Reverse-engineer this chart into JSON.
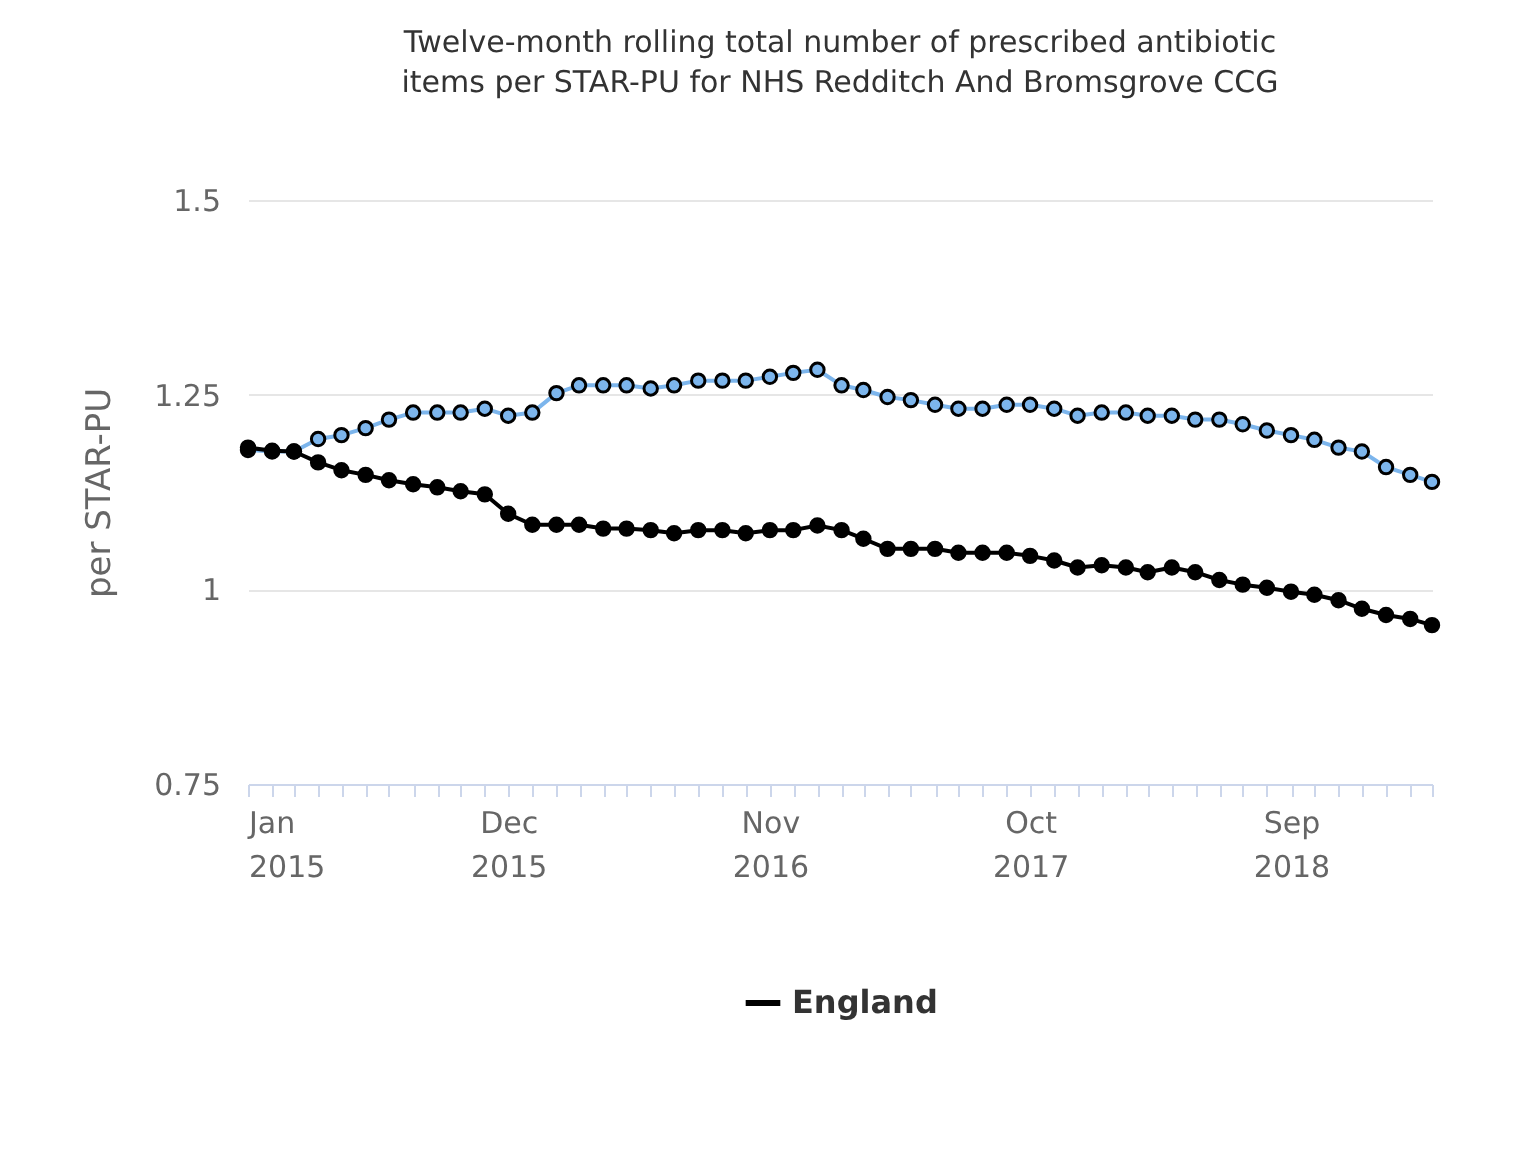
{
  "chart_data": {
    "type": "line",
    "title": "Twelve-month rolling total number of prescribed antibiotic items per STAR-PU for NHS Redditch And Bromsgrove CCG",
    "ylabel": "per STAR-PU",
    "x": [
      "2015-01",
      "2015-02",
      "2015-03",
      "2015-04",
      "2015-05",
      "2015-06",
      "2015-07",
      "2015-08",
      "2015-09",
      "2015-10",
      "2015-11",
      "2015-12",
      "2016-01",
      "2016-02",
      "2016-03",
      "2016-04",
      "2016-05",
      "2016-06",
      "2016-07",
      "2016-08",
      "2016-09",
      "2016-10",
      "2016-11",
      "2016-12",
      "2017-01",
      "2017-02",
      "2017-03",
      "2017-04",
      "2017-05",
      "2017-06",
      "2017-07",
      "2017-08",
      "2017-09",
      "2017-10",
      "2017-11",
      "2017-12",
      "2018-01",
      "2018-02",
      "2018-03",
      "2018-04",
      "2018-05",
      "2018-06",
      "2018-07",
      "2018-08",
      "2018-09",
      "2018-10",
      "2018-11",
      "2018-12",
      "2019-01",
      "2019-02",
      "2019-03"
    ],
    "series": [
      {
        "color": "#7cb5ec",
        "values": [
          1.179,
          1.177,
          1.177,
          1.193,
          1.198,
          1.207,
          1.218,
          1.227,
          1.227,
          1.227,
          1.232,
          1.223,
          1.227,
          1.252,
          1.262,
          1.262,
          1.262,
          1.258,
          1.262,
          1.268,
          1.268,
          1.268,
          1.273,
          1.278,
          1.282,
          1.262,
          1.256,
          1.247,
          1.243,
          1.237,
          1.232,
          1.232,
          1.237,
          1.237,
          1.232,
          1.223,
          1.227,
          1.227,
          1.223,
          1.223,
          1.218,
          1.218,
          1.212,
          1.204,
          1.198,
          1.192,
          1.182,
          1.177,
          1.157,
          1.147,
          1.138
        ]
      },
      {
        "name": "England",
        "color": "#000000",
        "values": [
          1.182,
          1.178,
          1.177,
          1.163,
          1.153,
          1.147,
          1.14,
          1.135,
          1.131,
          1.126,
          1.122,
          1.097,
          1.083,
          1.083,
          1.083,
          1.078,
          1.078,
          1.076,
          1.072,
          1.076,
          1.076,
          1.072,
          1.076,
          1.076,
          1.082,
          1.076,
          1.065,
          1.052,
          1.052,
          1.052,
          1.047,
          1.047,
          1.047,
          1.043,
          1.037,
          1.028,
          1.031,
          1.028,
          1.022,
          1.028,
          1.022,
          1.012,
          1.006,
          1.002,
          0.997,
          0.993,
          0.986,
          0.975,
          0.967,
          0.962,
          0.954
        ]
      }
    ],
    "xlim": [
      "2015-01",
      "2019-03"
    ],
    "xticks": [
      {
        "value": "2015-01",
        "label": "Jan 2015"
      },
      {
        "value": "2015-02",
        "label": null
      },
      {
        "value": "2015-03",
        "label": null
      },
      {
        "value": "2015-04",
        "label": null
      },
      {
        "value": "2015-05",
        "label": null
      },
      {
        "value": "2015-06",
        "label": null
      },
      {
        "value": "2015-07",
        "label": null
      },
      {
        "value": "2015-08",
        "label": null
      },
      {
        "value": "2015-09",
        "label": null
      },
      {
        "value": "2015-10",
        "label": null
      },
      {
        "value": "2015-11",
        "label": null
      },
      {
        "value": "2015-12",
        "label": "Dec 2015"
      },
      {
        "value": "2016-01",
        "label": null
      },
      {
        "value": "2016-02",
        "label": null
      },
      {
        "value": "2016-03",
        "label": null
      },
      {
        "value": "2016-04",
        "label": null
      },
      {
        "value": "2016-05",
        "label": null
      },
      {
        "value": "2016-06",
        "label": null
      },
      {
        "value": "2016-07",
        "label": null
      },
      {
        "value": "2016-08",
        "label": null
      },
      {
        "value": "2016-09",
        "label": null
      },
      {
        "value": "2016-10",
        "label": null
      },
      {
        "value": "2016-11",
        "label": "Nov 2016"
      },
      {
        "value": "2016-12",
        "label": null
      },
      {
        "value": "2017-01",
        "label": null
      },
      {
        "value": "2017-02",
        "label": null
      },
      {
        "value": "2017-03",
        "label": null
      },
      {
        "value": "2017-04",
        "label": null
      },
      {
        "value": "2017-05",
        "label": null
      },
      {
        "value": "2017-06",
        "label": null
      },
      {
        "value": "2017-07",
        "label": null
      },
      {
        "value": "2017-08",
        "label": null
      },
      {
        "value": "2017-09",
        "label": null
      },
      {
        "value": "2017-10",
        "label": "Oct 2017"
      },
      {
        "value": "2017-11",
        "label": null
      },
      {
        "value": "2017-12",
        "label": null
      },
      {
        "value": "2018-01",
        "label": null
      },
      {
        "value": "2018-02",
        "label": null
      },
      {
        "value": "2018-03",
        "label": null
      },
      {
        "value": "2018-04",
        "label": null
      },
      {
        "value": "2018-05",
        "label": null
      },
      {
        "value": "2018-06",
        "label": null
      },
      {
        "value": "2018-07",
        "label": null
      },
      {
        "value": "2018-08",
        "label": null
      },
      {
        "value": "2018-09",
        "label": "Sep 2018"
      },
      {
        "value": "2018-10",
        "label": null
      },
      {
        "value": "2018-11",
        "label": null
      },
      {
        "value": "2018-12",
        "label": null
      },
      {
        "value": "2019-01",
        "label": null
      },
      {
        "value": "2019-02",
        "label": null
      },
      {
        "value": "2019-03",
        "label": null
      }
    ],
    "ylim": [
      0.75,
      1.5
    ],
    "yticks": [
      0.75,
      1,
      1.25,
      1.5
    ],
    "grid": "y",
    "legend": "bottom",
    "marker": "circle",
    "line_style": "solid"
  }
}
